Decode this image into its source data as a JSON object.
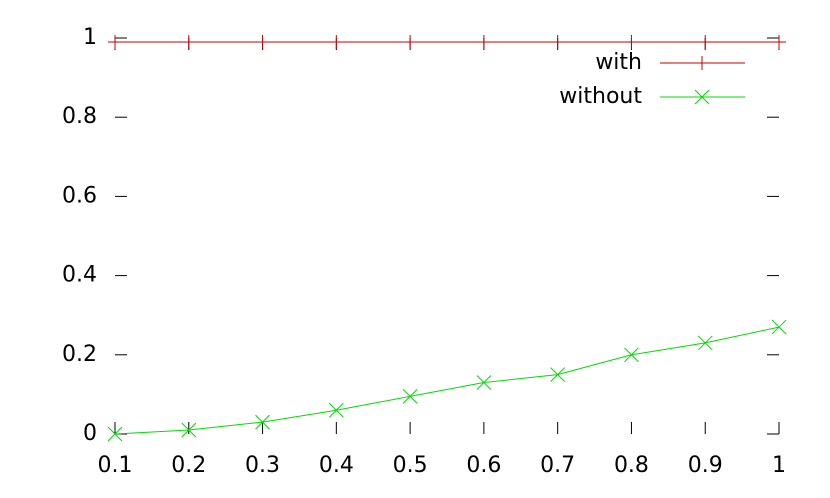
{
  "chart_data": {
    "type": "line",
    "x": [
      0.1,
      0.2,
      0.3,
      0.4,
      0.5,
      0.6,
      0.7,
      0.8,
      0.9,
      1
    ],
    "series": [
      {
        "name": "with",
        "color": "#cc0000",
        "marker": "plus",
        "values": [
          0.99,
          0.99,
          0.99,
          0.99,
          0.99,
          0.99,
          0.99,
          0.99,
          0.99,
          0.99
        ]
      },
      {
        "name": "without",
        "color": "#00dd00",
        "marker": "cross",
        "values": [
          0,
          0.01,
          0.03,
          0.06,
          0.095,
          0.13,
          0.15,
          0.2,
          0.23,
          0.27
        ]
      }
    ],
    "xlim": [
      0.1,
      1
    ],
    "xticks": [
      0.1,
      0.2,
      0.3,
      0.4,
      0.5,
      0.6,
      0.7,
      0.8,
      0.9,
      1
    ],
    "ylim": [
      0,
      1
    ],
    "yticks": [
      0,
      0.2,
      0.4,
      0.6,
      0.8,
      1
    ],
    "grid": false,
    "legend": "top-right"
  }
}
